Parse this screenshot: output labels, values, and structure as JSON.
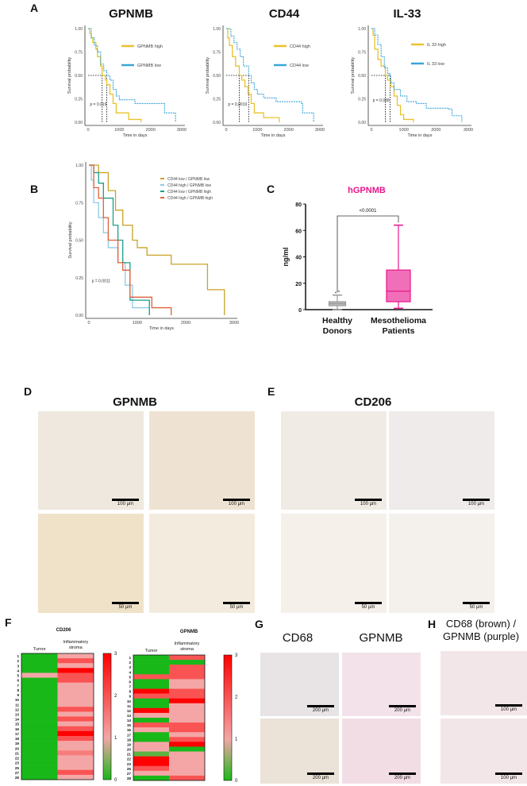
{
  "panels": {
    "A": "A",
    "B": "B",
    "C": "C",
    "D": "D",
    "E": "E",
    "F": "F",
    "G": "G",
    "H": "H"
  },
  "chart_data": [
    {
      "id": "A1",
      "type": "line",
      "title": "GPNMB",
      "xlabel": "Time in days",
      "ylabel": "Survival probability",
      "xlim": [
        0,
        3000
      ],
      "ylim": [
        0,
        1
      ],
      "xticks": [
        "0",
        "1000",
        "2000",
        "3000"
      ],
      "yticks": [
        "0.00",
        "0.25",
        "0.50",
        "0.75",
        "1.00"
      ],
      "pvalue": "p = 0.019",
      "medians": [
        450,
        600
      ],
      "series": [
        {
          "name": "GPNMB high",
          "color": "#e8c22a",
          "dashed": false,
          "points": [
            [
              0,
              1
            ],
            [
              50,
              0.95
            ],
            [
              100,
              0.9
            ],
            [
              150,
              0.85
            ],
            [
              250,
              0.78
            ],
            [
              300,
              0.7
            ],
            [
              400,
              0.6
            ],
            [
              450,
              0.5
            ],
            [
              550,
              0.45
            ],
            [
              600,
              0.4
            ],
            [
              700,
              0.3
            ],
            [
              800,
              0.2
            ],
            [
              900,
              0.1
            ],
            [
              1200,
              0.1
            ],
            [
              1300,
              0.03
            ],
            [
              1700,
              0.03
            ],
            [
              1700,
              0
            ]
          ]
        },
        {
          "name": "GPNMB low",
          "color": "#3aa6d8",
          "dashed": true,
          "points": [
            [
              0,
              1
            ],
            [
              100,
              0.9
            ],
            [
              200,
              0.82
            ],
            [
              300,
              0.75
            ],
            [
              400,
              0.62
            ],
            [
              500,
              0.55
            ],
            [
              600,
              0.5
            ],
            [
              700,
              0.45
            ],
            [
              800,
              0.35
            ],
            [
              900,
              0.28
            ],
            [
              1000,
              0.24
            ],
            [
              1500,
              0.2
            ],
            [
              2400,
              0.2
            ],
            [
              2450,
              0.1
            ],
            [
              2800,
              0.1
            ],
            [
              2800,
              0
            ]
          ]
        }
      ]
    },
    {
      "id": "A2",
      "type": "line",
      "title": "CD44",
      "xlabel": "Time in days",
      "ylabel": "Survival probability",
      "xlim": [
        0,
        3000
      ],
      "ylim": [
        0,
        1
      ],
      "xticks": [
        "0",
        "1000",
        "2000",
        "3000"
      ],
      "yticks": [
        "0.00",
        "0.25",
        "0.50",
        "0.75",
        "1.00"
      ],
      "pvalue": "p = 0.0019",
      "medians": [
        420,
        720
      ],
      "series": [
        {
          "name": "CD44 high",
          "color": "#e8c22a",
          "dashed": false,
          "points": [
            [
              0,
              1
            ],
            [
              50,
              0.9
            ],
            [
              100,
              0.82
            ],
            [
              200,
              0.7
            ],
            [
              300,
              0.6
            ],
            [
              420,
              0.5
            ],
            [
              500,
              0.45
            ],
            [
              600,
              0.38
            ],
            [
              700,
              0.3
            ],
            [
              800,
              0.2
            ],
            [
              900,
              0.1
            ],
            [
              1200,
              0.05
            ],
            [
              1700,
              0.05
            ],
            [
              1700,
              0
            ]
          ]
        },
        {
          "name": "CD44 low",
          "color": "#3aa6d8",
          "dashed": true,
          "points": [
            [
              0,
              1
            ],
            [
              150,
              0.92
            ],
            [
              250,
              0.85
            ],
            [
              350,
              0.78
            ],
            [
              450,
              0.7
            ],
            [
              550,
              0.6
            ],
            [
              720,
              0.5
            ],
            [
              800,
              0.42
            ],
            [
              900,
              0.35
            ],
            [
              1000,
              0.3
            ],
            [
              1200,
              0.26
            ],
            [
              1600,
              0.22
            ],
            [
              2400,
              0.2
            ],
            [
              2450,
              0.1
            ],
            [
              2800,
              0.1
            ],
            [
              2800,
              0
            ]
          ]
        }
      ]
    },
    {
      "id": "A3",
      "type": "line",
      "title": "IL-33",
      "xlabel": "Time in days",
      "ylabel": "Survival probability",
      "xlim": [
        0,
        3000
      ],
      "ylim": [
        0,
        1
      ],
      "xticks": [
        "0",
        "1000",
        "2000",
        "3000"
      ],
      "yticks": [
        "0.00",
        "0.25",
        "0.50",
        "0.75",
        "1.00"
      ],
      "pvalue": "p = 0.038",
      "medians": [
        430,
        580
      ],
      "series": [
        {
          "name": "IL 33 high",
          "color": "#e8c22a",
          "dashed": false,
          "points": [
            [
              0,
              1
            ],
            [
              50,
              0.93
            ],
            [
              100,
              0.78
            ],
            [
              200,
              0.67
            ],
            [
              300,
              0.6
            ],
            [
              430,
              0.5
            ],
            [
              500,
              0.45
            ],
            [
              600,
              0.38
            ],
            [
              700,
              0.28
            ],
            [
              800,
              0.18
            ],
            [
              900,
              0.08
            ],
            [
              1000,
              0.03
            ],
            [
              1300,
              0.03
            ],
            [
              1300,
              0
            ]
          ]
        },
        {
          "name": "IL 33 low",
          "color": "#3aa6d8",
          "dashed": true,
          "points": [
            [
              0,
              1
            ],
            [
              100,
              0.93
            ],
            [
              200,
              0.83
            ],
            [
              300,
              0.7
            ],
            [
              400,
              0.58
            ],
            [
              500,
              0.52
            ],
            [
              580,
              0.5
            ],
            [
              600,
              0.42
            ],
            [
              700,
              0.35
            ],
            [
              900,
              0.28
            ],
            [
              1100,
              0.22
            ],
            [
              1400,
              0.2
            ],
            [
              1700,
              0.15
            ],
            [
              2400,
              0.14
            ],
            [
              2500,
              0.07
            ],
            [
              2800,
              0.05
            ],
            [
              2800,
              0
            ]
          ]
        }
      ]
    },
    {
      "id": "B",
      "type": "line",
      "title": "",
      "xlabel": "Time in days",
      "ylabel": "Survival probability",
      "xlim": [
        0,
        3000
      ],
      "ylim": [
        0,
        1
      ],
      "xticks": [
        "0",
        "1000",
        "2000",
        "3000"
      ],
      "yticks": [
        "0.00",
        "0.25",
        "0.50",
        "0.75",
        "1.00"
      ],
      "pvalue": "p = 0.0011",
      "legend": "top-right",
      "series": [
        {
          "name": "CD44 low / GPNMB low",
          "color": "#c9a227",
          "points": [
            [
              0,
              1
            ],
            [
              200,
              0.95
            ],
            [
              400,
              0.83
            ],
            [
              550,
              0.7
            ],
            [
              700,
              0.6
            ],
            [
              900,
              0.5
            ],
            [
              1000,
              0.45
            ],
            [
              1200,
              0.4
            ],
            [
              1700,
              0.34
            ],
            [
              2450,
              0.17
            ],
            [
              2800,
              0.17
            ],
            [
              2800,
              0
            ]
          ]
        },
        {
          "name": "CD44 high / GPNMB low",
          "color": "#8ecae6",
          "points": [
            [
              0,
              1
            ],
            [
              50,
              0.9
            ],
            [
              100,
              0.75
            ],
            [
              200,
              0.65
            ],
            [
              300,
              0.55
            ],
            [
              400,
              0.45
            ],
            [
              600,
              0.35
            ],
            [
              750,
              0.2
            ],
            [
              900,
              0.05
            ],
            [
              1250,
              0.05
            ],
            [
              1250,
              0
            ]
          ]
        },
        {
          "name": "CD44 low / GPNMB high",
          "color": "#1a9e8a",
          "points": [
            [
              0,
              1
            ],
            [
              100,
              0.95
            ],
            [
              200,
              0.88
            ],
            [
              300,
              0.78
            ],
            [
              500,
              0.6
            ],
            [
              600,
              0.5
            ],
            [
              700,
              0.35
            ],
            [
              850,
              0.1
            ],
            [
              1250,
              0.1
            ],
            [
              1250,
              0
            ]
          ]
        },
        {
          "name": "CD44 high / GPNMB high",
          "color": "#e0603a",
          "points": [
            [
              0,
              1
            ],
            [
              100,
              0.85
            ],
            [
              200,
              0.78
            ],
            [
              300,
              0.65
            ],
            [
              400,
              0.5
            ],
            [
              600,
              0.35
            ],
            [
              700,
              0.3
            ],
            [
              850,
              0.12
            ],
            [
              1300,
              0.12
            ],
            [
              1300,
              0.05
            ],
            [
              1700,
              0.05
            ],
            [
              1700,
              0
            ]
          ]
        }
      ]
    },
    {
      "id": "C",
      "type": "box",
      "title": "hGPNMB",
      "ylabel": "ng/ml",
      "ylim": [
        0,
        80
      ],
      "yticks": [
        "0",
        "20",
        "40",
        "60",
        "80"
      ],
      "significance": "<0.0001",
      "categories": [
        "Healthy Donors",
        "Mesothelioma Patients"
      ],
      "boxes": [
        {
          "min": 0,
          "q1": 3,
          "median": 4.5,
          "q3": 6,
          "max": 11,
          "outliers": [
            13,
            14
          ],
          "color": "#bdbdbd"
        },
        {
          "min": 1,
          "q1": 6,
          "median": 14,
          "q3": 30,
          "max": 64,
          "outliers": [],
          "color": "#f06fb8"
        }
      ]
    },
    {
      "id": "F1",
      "type": "heatmap",
      "title": "CD206",
      "columns": [
        "Tumor",
        "Inflammatory stroma"
      ],
      "scale": [
        0,
        3
      ],
      "colorbar_ticks": [
        "0",
        "1",
        "2",
        "3"
      ],
      "rows": [
        "1",
        "2",
        "3",
        "4",
        "5",
        "6",
        "7",
        "8",
        "9",
        "10",
        "11",
        "12",
        "13",
        "14",
        "15",
        "16",
        "17",
        "18",
        "19",
        "20",
        "21",
        "22",
        "23",
        "25",
        "27",
        "28"
      ],
      "values": [
        [
          0,
          1
        ],
        [
          0,
          2
        ],
        [
          0,
          1
        ],
        [
          0,
          3
        ],
        [
          1,
          2
        ],
        [
          0,
          2
        ],
        [
          0,
          1
        ],
        [
          0,
          1
        ],
        [
          0,
          1
        ],
        [
          0,
          1
        ],
        [
          0,
          1
        ],
        [
          0,
          2
        ],
        [
          0,
          1
        ],
        [
          0,
          2
        ],
        [
          0,
          1
        ],
        [
          0,
          2
        ],
        [
          0,
          3
        ],
        [
          0,
          2
        ],
        [
          0,
          1
        ],
        [
          0,
          1
        ],
        [
          0,
          1.5
        ],
        [
          0,
          1
        ],
        [
          0,
          1
        ],
        [
          0,
          1
        ],
        [
          0,
          2
        ],
        [
          0,
          1
        ]
      ]
    },
    {
      "id": "F2",
      "type": "heatmap",
      "title": "GPNMB",
      "columns": [
        "Tumor",
        "Inflammatory stroma"
      ],
      "scale": [
        0,
        3
      ],
      "colorbar_ticks": [
        "0",
        "1",
        "2",
        "3"
      ],
      "rows": [
        "1",
        "2",
        "3",
        "4",
        "5",
        "6",
        "7",
        "8",
        "9",
        "10",
        "11",
        "12",
        "13",
        "14",
        "15",
        "16",
        "17",
        "18",
        "19",
        "20",
        "21",
        "22",
        "23",
        "25",
        "27",
        "28"
      ],
      "values": [
        [
          0,
          2
        ],
        [
          0,
          0
        ],
        [
          0,
          2
        ],
        [
          0,
          2
        ],
        [
          2,
          2
        ],
        [
          0,
          1
        ],
        [
          0,
          1
        ],
        [
          3,
          2
        ],
        [
          2,
          2
        ],
        [
          0,
          3
        ],
        [
          0,
          1
        ],
        [
          3,
          1
        ],
        [
          1,
          1
        ],
        [
          0,
          1
        ],
        [
          2,
          2
        ],
        [
          1,
          2
        ],
        [
          0,
          1
        ],
        [
          0,
          2
        ],
        [
          1,
          3
        ],
        [
          1,
          0
        ],
        [
          0.3,
          1
        ],
        [
          3,
          1
        ],
        [
          3,
          1
        ],
        [
          2,
          1
        ],
        [
          1,
          1
        ],
        [
          0,
          2
        ]
      ]
    }
  ],
  "micrographs": {
    "D": {
      "title": "GPNMB",
      "scales": [
        "100 µm",
        "100 µm",
        "50 µm",
        "50 µm"
      ]
    },
    "E": {
      "title": "CD206",
      "scales": [
        "100 µm",
        "100 µm",
        "50 µm",
        "50 µm"
      ]
    },
    "G": {
      "titles": [
        "CD68",
        "GPNMB"
      ],
      "scales": [
        "200 µm",
        "200 µm",
        "200 µm",
        "200 µm"
      ]
    },
    "H": {
      "title_line1": "CD68 (brown) /",
      "title_line2": "GPNMB (purple)",
      "scales": [
        "100 µm",
        "100 µm"
      ]
    }
  },
  "colors": {
    "high": "#e8c22a",
    "low": "#3aa6d8",
    "title_C": "#e8168c",
    "heat_low": "#19b819",
    "heat_mid": "#f4a6a6",
    "heat_high": "#ff0000"
  }
}
